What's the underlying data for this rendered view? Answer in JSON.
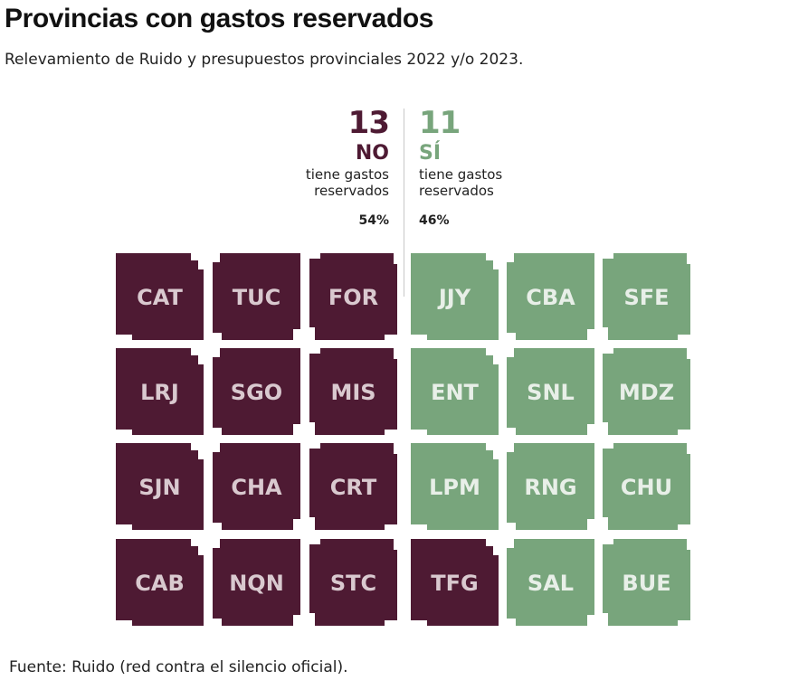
{
  "title": "Provincias con gastos reservados",
  "subtitle": "Relevamiento de Ruido y presupuestos provinciales 2022 y/o 2023.",
  "source": "Fuente: Ruido (red contra el silencio oficial).",
  "colors": {
    "no": "#4e1a33",
    "si": "#78a57c"
  },
  "chart_data": {
    "type": "tile-map",
    "groups": [
      {
        "key": "no",
        "count": "13",
        "label": "NO",
        "desc_line1": "tiene gastos",
        "desc_line2": "reservados",
        "pct": "54%"
      },
      {
        "key": "si",
        "count": "11",
        "label": "SÍ",
        "desc_line1": "tiene gastos",
        "desc_line2": "reservados",
        "pct": "46%"
      }
    ],
    "rows": [
      [
        {
          "code": "CAT",
          "group": "no"
        },
        {
          "code": "TUC",
          "group": "no"
        },
        {
          "code": "FOR",
          "group": "no"
        },
        {
          "code": "JJY",
          "group": "si"
        },
        {
          "code": "CBA",
          "group": "si"
        },
        {
          "code": "SFE",
          "group": "si"
        }
      ],
      [
        {
          "code": "LRJ",
          "group": "no"
        },
        {
          "code": "SGO",
          "group": "no"
        },
        {
          "code": "MIS",
          "group": "no"
        },
        {
          "code": "ENT",
          "group": "si"
        },
        {
          "code": "SNL",
          "group": "si"
        },
        {
          "code": "MDZ",
          "group": "si"
        }
      ],
      [
        {
          "code": "SJN",
          "group": "no"
        },
        {
          "code": "CHA",
          "group": "no"
        },
        {
          "code": "CRT",
          "group": "no"
        },
        {
          "code": "LPM",
          "group": "si"
        },
        {
          "code": "RNG",
          "group": "si"
        },
        {
          "code": "CHU",
          "group": "si"
        }
      ],
      [
        {
          "code": "CAB",
          "group": "no"
        },
        {
          "code": "NQN",
          "group": "no"
        },
        {
          "code": "STC",
          "group": "no"
        },
        {
          "code": "TFG",
          "group": "no"
        },
        {
          "code": "SAL",
          "group": "si"
        },
        {
          "code": "BUE",
          "group": "si"
        }
      ]
    ]
  }
}
